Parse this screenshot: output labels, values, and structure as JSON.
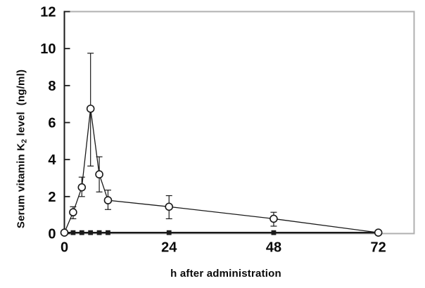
{
  "chart_data": {
    "type": "line",
    "title": "",
    "xlabel": "h after administration",
    "ylabel": "Serum vitamin K2 level  (ng/ml)",
    "ylabel_parts": {
      "pre": "Serum vitamin K",
      "sub": "2",
      "post": " level  (ng/ml)"
    },
    "x_ticks": [
      0,
      24,
      48,
      72
    ],
    "y_ticks": [
      0,
      2,
      4,
      6,
      8,
      10,
      12
    ],
    "xlim": [
      0,
      80.2
    ],
    "ylim": [
      0,
      12
    ],
    "grid": false,
    "legend": "none",
    "series": [
      {
        "name": "filled-square-series",
        "marker": "filled-square",
        "x": [
          0,
          2,
          4,
          6,
          8,
          10,
          24,
          48,
          72
        ],
        "y": [
          0.05,
          0.05,
          0.05,
          0.05,
          0.05,
          0.05,
          0.05,
          0.05,
          0.05
        ],
        "err_up": [
          0,
          0,
          0,
          0,
          0,
          0,
          0,
          0,
          0
        ],
        "err_down": [
          0,
          0,
          0,
          0,
          0,
          0,
          0,
          0,
          0
        ],
        "marker_visible": [
          false,
          true,
          true,
          true,
          true,
          true,
          true,
          true,
          false
        ]
      },
      {
        "name": "open-circle-series",
        "marker": "open-circle",
        "x": [
          0,
          2,
          4,
          6,
          8,
          10,
          24,
          48,
          72
        ],
        "y": [
          0.05,
          1.15,
          2.5,
          6.75,
          3.2,
          1.8,
          1.45,
          0.8,
          0.05
        ],
        "err_up": [
          0,
          0.3,
          0.55,
          3.0,
          0.95,
          0.55,
          0.6,
          0.35,
          0
        ],
        "err_down": [
          0,
          0.35,
          0.5,
          3.1,
          0.95,
          0.5,
          0.65,
          0.4,
          0
        ],
        "marker_visible": [
          true,
          true,
          true,
          true,
          true,
          true,
          true,
          true,
          true
        ]
      }
    ],
    "colors": {
      "line": "#1a1a1a",
      "frame": "#b0b0b0",
      "text": "#0a0a0a",
      "background": "#ffffff",
      "marker_fill_open": "#ffffff"
    }
  }
}
